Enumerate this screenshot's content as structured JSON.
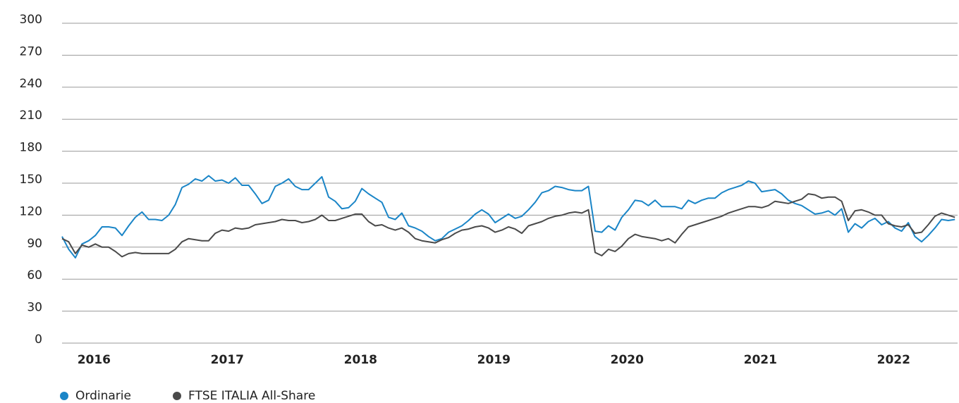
{
  "chart_data": {
    "type": "line",
    "x": [
      2015.76,
      2015.81,
      2015.86,
      2015.91,
      2015.96,
      2016.01,
      2016.06,
      2016.11,
      2016.16,
      2016.21,
      2016.26,
      2016.31,
      2016.36,
      2016.41,
      2016.46,
      2016.51,
      2016.56,
      2016.61,
      2016.66,
      2016.71,
      2016.76,
      2016.81,
      2016.86,
      2016.91,
      2016.96,
      2017.01,
      2017.06,
      2017.11,
      2017.16,
      2017.21,
      2017.26,
      2017.31,
      2017.36,
      2017.41,
      2017.46,
      2017.51,
      2017.56,
      2017.61,
      2017.66,
      2017.71,
      2017.76,
      2017.81,
      2017.86,
      2017.91,
      2017.96,
      2018.01,
      2018.06,
      2018.11,
      2018.16,
      2018.21,
      2018.26,
      2018.31,
      2018.36,
      2018.41,
      2018.46,
      2018.51,
      2018.56,
      2018.61,
      2018.66,
      2018.71,
      2018.76,
      2018.81,
      2018.86,
      2018.91,
      2018.96,
      2019.01,
      2019.06,
      2019.11,
      2019.16,
      2019.21,
      2019.26,
      2019.31,
      2019.36,
      2019.41,
      2019.46,
      2019.51,
      2019.56,
      2019.61,
      2019.66,
      2019.71,
      2019.76,
      2019.81,
      2019.86,
      2019.91,
      2019.96,
      2020.01,
      2020.06,
      2020.11,
      2020.16,
      2020.21,
      2020.26,
      2020.31,
      2020.36,
      2020.41,
      2020.46,
      2020.51,
      2020.56,
      2020.61,
      2020.66,
      2020.71,
      2020.76,
      2020.81,
      2020.86,
      2020.91,
      2020.96,
      2021.01,
      2021.06,
      2021.11,
      2021.16,
      2021.21,
      2021.26,
      2021.31,
      2021.36,
      2021.41,
      2021.46,
      2021.51,
      2021.56,
      2021.61,
      2021.66,
      2021.71,
      2021.76,
      2021.81,
      2021.86,
      2021.91,
      2021.96,
      2022.01,
      2022.06,
      2022.11,
      2022.16,
      2022.21,
      2022.26,
      2022.31,
      2022.36,
      2022.41,
      2022.46
    ],
    "series": [
      {
        "name": "Ordinarie",
        "color": "#1a85c7",
        "values": [
          100,
          88,
          80,
          93,
          96,
          101,
          109,
          109,
          108,
          101,
          110,
          118,
          123,
          116,
          116,
          115,
          120,
          130,
          146,
          149,
          154,
          152,
          157,
          152,
          153,
          150,
          155,
          148,
          148,
          140,
          131,
          134,
          147,
          150,
          154,
          147,
          144,
          144,
          150,
          156,
          137,
          133,
          126,
          127,
          133,
          145,
          140,
          136,
          132,
          118,
          116,
          122,
          110,
          108,
          105,
          100,
          96,
          98,
          104,
          107,
          110,
          115,
          121,
          125,
          121,
          113,
          117,
          121,
          117,
          119,
          125,
          132,
          141,
          143,
          147,
          146,
          144,
          143,
          143,
          147,
          105,
          104,
          110,
          106,
          118,
          125,
          134,
          133,
          129,
          134,
          128,
          128,
          128,
          126,
          134,
          131,
          134,
          136,
          136,
          141,
          144,
          146,
          148,
          152,
          150,
          142,
          143,
          144,
          140,
          134,
          131,
          129,
          125,
          121,
          122,
          124,
          120,
          126,
          104,
          112,
          108,
          114,
          117,
          111,
          114,
          108,
          105,
          113,
          100,
          95,
          101,
          108,
          116,
          115,
          116
        ]
      },
      {
        "name": "FTSE ITALIA All-Share",
        "color": "#4a4a4a",
        "values": [
          98,
          95,
          84,
          92,
          90,
          93,
          90,
          90,
          86,
          81,
          84,
          85,
          84,
          84,
          84,
          84,
          84,
          88,
          95,
          98,
          97,
          96,
          96,
          103,
          106,
          105,
          108,
          107,
          108,
          111,
          112,
          113,
          114,
          116,
          115,
          115,
          113,
          114,
          116,
          120,
          115,
          115,
          117,
          119,
          121,
          121,
          114,
          110,
          111,
          108,
          106,
          108,
          104,
          98,
          96,
          95,
          94,
          97,
          99,
          103,
          106,
          107,
          109,
          110,
          108,
          104,
          106,
          109,
          107,
          103,
          110,
          112,
          114,
          117,
          119,
          120,
          122,
          123,
          122,
          125,
          85,
          82,
          88,
          86,
          91,
          98,
          102,
          100,
          99,
          98,
          96,
          98,
          94,
          102,
          109,
          111,
          113,
          115,
          117,
          119,
          122,
          124,
          126,
          128,
          128,
          127,
          129,
          133,
          132,
          131,
          133,
          135,
          140,
          139,
          136,
          137,
          137,
          133,
          115,
          124,
          125,
          123,
          120,
          120,
          112,
          110,
          109,
          111,
          103,
          104,
          111,
          119,
          122,
          120,
          118
        ]
      }
    ],
    "xlim": [
      2015.76,
      2022.48
    ],
    "xticks": [
      2016,
      2017,
      2018,
      2019,
      2020,
      2021,
      2022
    ],
    "ylim": [
      0,
      300
    ],
    "yticks": [
      0,
      30,
      60,
      90,
      120,
      150,
      180,
      210,
      240,
      270,
      300
    ],
    "grid": true,
    "legend": "bottom-left"
  }
}
